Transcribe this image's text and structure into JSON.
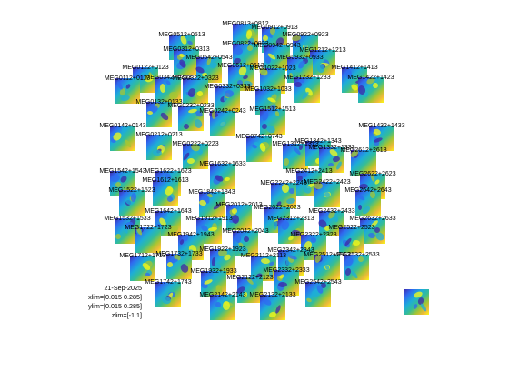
{
  "chart_data": {
    "type": "heatmap",
    "title": "",
    "colormap": "parula",
    "colors": {
      "low": "#3e26a8",
      "mid": "#2ab6a8",
      "high": "#f9fb15",
      "background": "#ffffff"
    },
    "info": {
      "date": "21-Sep-2025",
      "xlim": "xlim=[0.015 0.285]",
      "ylim": "ylim=[0.015 0.285]",
      "zlim": "zlim=[-1 1]"
    },
    "channels": [
      "MEG0813+0812",
      "MEG0912+0913",
      "MEG0512+0513",
      "MEG0922+0923",
      "MEG0822+0823",
      "MEG0942+0943",
      "MEG0312+0313",
      "MEG1212+1213",
      "MEG0542+0543",
      "MEG0932+0933",
      "MEG0122+0123",
      "MEG1412+1413",
      "MEG0612+0613",
      "MEG1022+1023",
      "MEG0112+0113",
      "MEG0342+0343",
      "MEG0322+0323",
      "MEG1232+1233",
      "MEG1422+1423",
      "MEG0332+0333",
      "MEG1032+1033",
      "MEG0132+0133",
      "MEG0232+0233",
      "MEG0242+0243",
      "MEG1512+1513",
      "MEG0142+0143",
      "MEG1432+1433",
      "MEG0212+0213",
      "MEG0222+0223",
      "MEG1312+1313",
      "MEG0742+0743",
      "MEG1342+1343",
      "MEG1332+1333",
      "MEG2612+2613",
      "MEG1542+1543",
      "MEG1622+1623",
      "MEG1632+1633",
      "MEG2412+2413",
      "MEG2622+2623",
      "MEG1522+1523",
      "MEG1612+1613",
      "MEG1842+1843",
      "MEG2242+2243",
      "MEG2422+2423",
      "MEG2642+2643",
      "MEG1642+1643",
      "MEG2012+2013",
      "MEG2022+2023",
      "MEG2432+2433",
      "MEG1532+1533",
      "MEG1912+1913",
      "MEG2312+2313",
      "MEG2632+2633",
      "MEG1722+1723",
      "MEG2042+2043",
      "MEG2322+2323",
      "MEG2522+2523",
      "MEG1942+1943",
      "MEG1922+1923",
      "MEG2342+2343",
      "MEG1712+1713",
      "MEG1732+1733",
      "MEG2112+2113",
      "MEG2512+2513",
      "MEG2532+2533",
      "MEG1932+1933",
      "MEG2332+2333",
      "MEG1742+1743",
      "MEG2122+2123",
      "MEG2542+2543",
      "MEG2142+2143",
      "MEG2132+2133"
    ]
  }
}
